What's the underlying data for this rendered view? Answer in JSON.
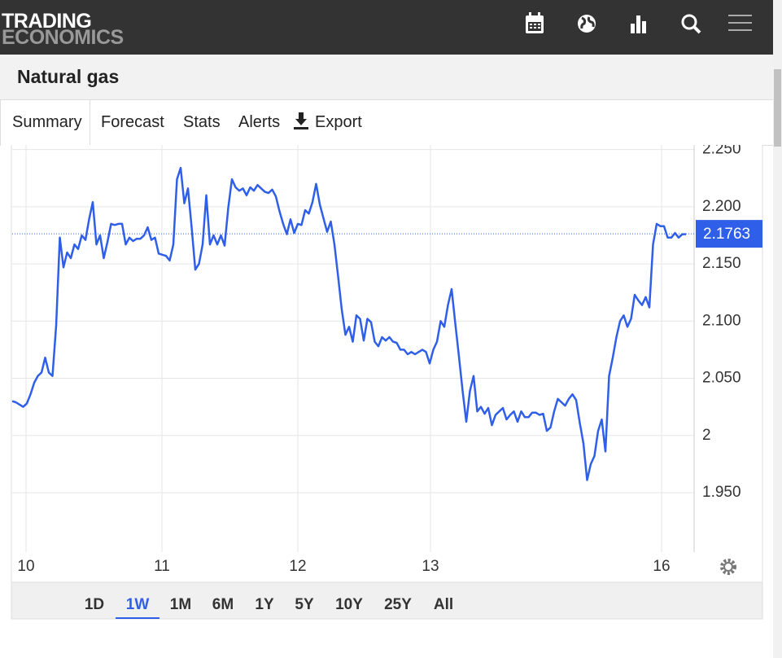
{
  "header": {
    "logo_top": "TRADING",
    "logo_bottom": "ECONOMICS"
  },
  "title": "Natural gas",
  "tabs": [
    "Summary",
    "Forecast",
    "Stats",
    "Alerts",
    "Export"
  ],
  "chart_data": {
    "type": "line",
    "color": "#2f5fe8",
    "grid": true,
    "x_labels": [
      "10",
      "11",
      "12",
      "13",
      "16"
    ],
    "values": [
      2.03,
      2.029,
      2.027,
      2.025,
      2.028,
      2.036,
      2.046,
      2.052,
      2.055,
      2.068,
      2.055,
      2.052,
      2.096,
      2.173,
      2.147,
      2.16,
      2.155,
      2.167,
      2.163,
      2.175,
      2.171,
      2.189,
      2.204,
      2.167,
      2.175,
      2.155,
      2.169,
      2.185,
      2.184,
      2.185,
      2.185,
      2.167,
      2.173,
      2.17,
      2.172,
      2.172,
      2.175,
      2.182,
      2.171,
      2.173,
      2.159,
      2.158,
      2.157,
      2.153,
      2.167,
      2.224,
      2.234,
      2.203,
      2.216,
      2.182,
      2.145,
      2.15,
      2.167,
      2.21,
      2.167,
      2.175,
      2.167,
      2.175,
      2.166,
      2.199,
      2.224,
      2.217,
      2.214,
      2.216,
      2.21,
      2.217,
      2.214,
      2.219,
      2.216,
      2.213,
      2.212,
      2.215,
      2.209,
      2.196,
      2.185,
      2.176,
      2.189,
      2.177,
      2.185,
      2.184,
      2.197,
      2.194,
      2.204,
      2.22,
      2.202,
      2.19,
      2.178,
      2.187,
      2.167,
      2.139,
      2.11,
      2.088,
      2.095,
      2.082,
      2.105,
      2.102,
      2.083,
      2.102,
      2.099,
      2.082,
      2.078,
      2.086,
      2.083,
      2.086,
      2.082,
      2.081,
      2.075,
      2.075,
      2.071,
      2.073,
      2.071,
      2.073,
      2.075,
      2.073,
      2.063,
      2.075,
      2.082,
      2.1,
      2.095,
      2.114,
      2.128,
      2.098,
      2.069,
      2.039,
      2.012,
      2.039,
      2.052,
      2.021,
      2.025,
      2.019,
      2.024,
      2.009,
      2.018,
      2.021,
      2.024,
      2.014,
      2.018,
      2.021,
      2.012,
      2.021,
      2.016,
      2.016,
      2.02,
      2.02,
      2.018,
      2.019,
      2.004,
      2.007,
      2.021,
      2.032,
      2.029,
      2.026,
      2.032,
      2.036,
      2.031,
      2.011,
      1.993,
      1.961,
      1.975,
      1.982,
      2.004,
      2.014,
      1.986,
      2.052,
      2.068,
      2.086,
      2.1,
      2.105,
      2.095,
      2.102,
      2.123,
      2.118,
      2.114,
      2.121,
      2.112,
      2.167,
      2.185,
      2.183,
      2.183,
      2.173,
      2.173,
      2.177,
      2.173,
      2.176,
      2.176
    ],
    "last_value": 2.1763,
    "ylim": [
      1.898,
      2.254
    ],
    "yticks": [
      {
        "value": 2.25,
        "label": "2.250"
      },
      {
        "value": 2.2,
        "label": "2.200"
      },
      {
        "value": 2.15,
        "label": "2.150"
      },
      {
        "value": 2.1,
        "label": "2.100"
      },
      {
        "value": 2.05,
        "label": "2.050"
      },
      2,
      {
        "value": 1.95,
        "label": "1.950"
      }
    ]
  },
  "ranges": [
    "1D",
    "1W",
    "1M",
    "6M",
    "1Y",
    "5Y",
    "10Y",
    "25Y",
    "All"
  ]
}
